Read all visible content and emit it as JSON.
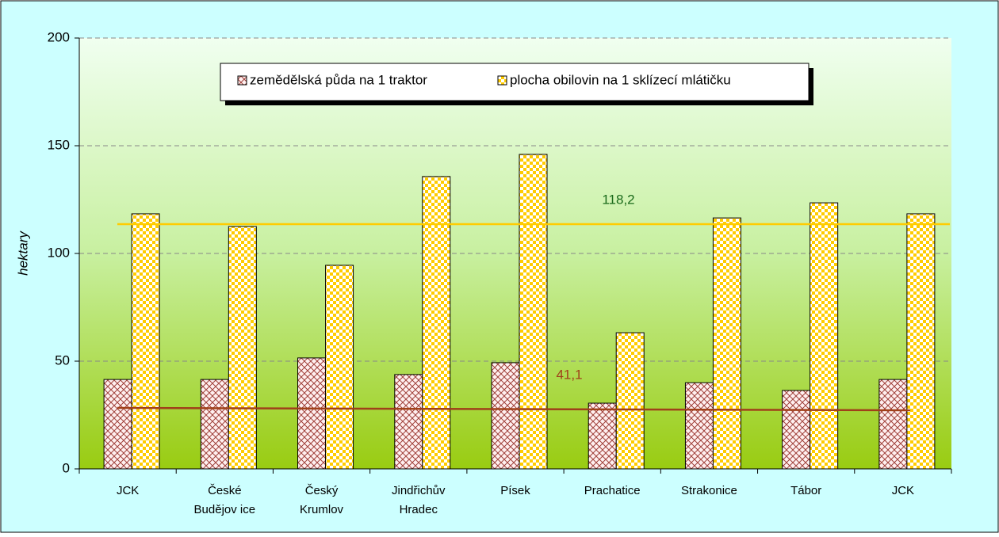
{
  "chart_data": {
    "type": "bar",
    "y_label": "hektary",
    "categories": [
      [
        "JCK"
      ],
      [
        "České",
        "Budějov ice"
      ],
      [
        "Český",
        "Krumlov"
      ],
      [
        "Jindřichův",
        "Hradec"
      ],
      [
        "Písek"
      ],
      [
        "Prachatice"
      ],
      [
        "Strakonice"
      ],
      [
        "Tábor"
      ],
      [
        "JCK"
      ]
    ],
    "series": [
      {
        "name": "zemědělská půda na 1 traktor",
        "color": "#a0403a",
        "values": [
          41.5,
          41.5,
          51.5,
          43.8,
          49.3,
          30.5,
          40,
          36.4,
          41.5
        ]
      },
      {
        "name": "plocha obilovin na 1 sklízecí mlátičku",
        "color": "#ffcc00",
        "values": [
          118.4,
          112.5,
          94.5,
          135.7,
          146,
          63.2,
          116.5,
          123.5,
          118.4
        ]
      }
    ],
    "trendlines": [
      {
        "color": "#a0401a",
        "values": [
          28.3,
          27.2
        ]
      },
      {
        "color": "#ffcc00",
        "values": [
          113.6,
          113.6
        ]
      }
    ],
    "annotations": [
      {
        "text": "118,2",
        "color": "#1a6a1a"
      },
      {
        "text": "41,1",
        "color": "#a0401a"
      }
    ],
    "ylim": [
      0,
      200
    ],
    "yticks": [
      0,
      50,
      100,
      150,
      200
    ],
    "grid": true
  }
}
